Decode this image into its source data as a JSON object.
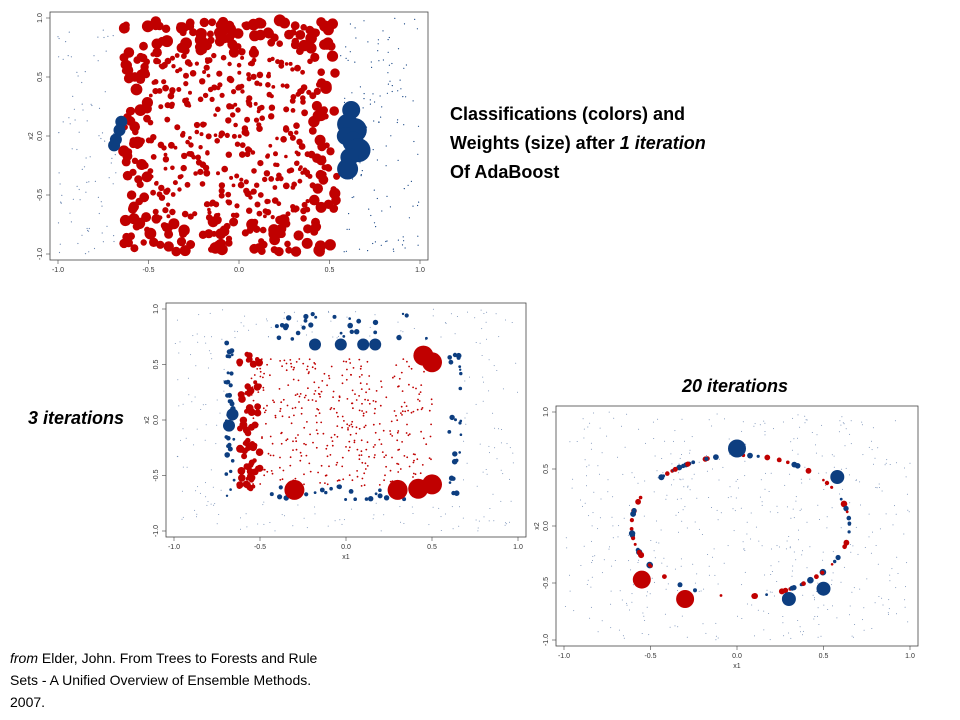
{
  "caption": {
    "line1": "Classifications (colors) and",
    "line2_prefix": "Weights (size) after ",
    "line2_italic": "1 iteration",
    "line3": "Of AdaBoost"
  },
  "labels": {
    "iter3": "3 iterations",
    "iter20": "20 iterations"
  },
  "citation": {
    "italic": "from",
    "text": " Elder, John.  From Trees to Forests and Rule Sets - A Unified Overview of Ensemble Methods.  2007."
  },
  "colors": {
    "red": "#c00000",
    "blue": "#0d3e80",
    "small_dot": "#6b86b0"
  },
  "chart_data": [
    {
      "type": "scatter",
      "title": "",
      "xlabel": "",
      "ylabel": "x2",
      "xlim": [
        -1.0,
        1.0
      ],
      "ylim": [
        -1.0,
        1.0
      ],
      "xticks": [
        "-1.0",
        "-0.5",
        "0.0",
        "0.5",
        "1.0"
      ],
      "yticks": [
        "-1.0",
        "-0.5",
        "0.0",
        "0.5",
        "1.0"
      ],
      "iterations": 1,
      "regions": {
        "red_box": {
          "x": [
            -0.65,
            0.55
          ],
          "y": [
            -1.0,
            1.0
          ]
        },
        "blue_large_points": [
          [
            0.62,
            0.22
          ],
          [
            0.6,
            0.1
          ],
          [
            0.64,
            0.05
          ],
          [
            0.59,
            0.0
          ],
          [
            0.63,
            -0.05
          ],
          [
            0.66,
            -0.12
          ],
          [
            0.61,
            -0.18
          ],
          [
            0.6,
            -0.28
          ],
          [
            -0.65,
            0.12
          ],
          [
            -0.66,
            0.05
          ],
          [
            -0.68,
            -0.03
          ],
          [
            -0.69,
            -0.08
          ]
        ]
      }
    },
    {
      "type": "scatter",
      "title": "",
      "xlabel": "x1",
      "ylabel": "x2",
      "xlim": [
        -1.0,
        1.0
      ],
      "ylim": [
        -1.0,
        1.0
      ],
      "xticks": [
        "-1.0",
        "-0.5",
        "0.0",
        "0.5",
        "1.0"
      ],
      "yticks": [
        "-1.0",
        "-0.5",
        "0.0",
        "0.5",
        "1.0"
      ],
      "iterations": 3,
      "large_points": [
        {
          "x": 0.45,
          "y": 0.58,
          "c": "red"
        },
        {
          "x": 0.5,
          "y": 0.52,
          "c": "red"
        },
        {
          "x": -0.3,
          "y": -0.63,
          "c": "red"
        },
        {
          "x": 0.3,
          "y": -0.63,
          "c": "red"
        },
        {
          "x": 0.42,
          "y": -0.62,
          "c": "red"
        },
        {
          "x": 0.5,
          "y": -0.58,
          "c": "red"
        },
        {
          "x": -0.18,
          "y": 0.68,
          "c": "blue"
        },
        {
          "x": -0.03,
          "y": 0.68,
          "c": "blue"
        },
        {
          "x": 0.1,
          "y": 0.68,
          "c": "blue"
        },
        {
          "x": 0.17,
          "y": 0.68,
          "c": "blue"
        },
        {
          "x": -0.66,
          "y": 0.05,
          "c": "blue"
        },
        {
          "x": -0.68,
          "y": -0.05,
          "c": "blue"
        }
      ]
    },
    {
      "type": "scatter",
      "title": "",
      "xlabel": "x1",
      "ylabel": "x2",
      "xlim": [
        -1.0,
        1.0
      ],
      "ylim": [
        -1.0,
        1.0
      ],
      "xticks": [
        "-1.0",
        "-0.5",
        "0.0",
        "0.5",
        "1.0"
      ],
      "yticks": [
        "-1.0",
        "-0.5",
        "0.0",
        "0.5",
        "1.0"
      ],
      "iterations": 20,
      "large_points": [
        {
          "x": 0.0,
          "y": 0.68,
          "c": "blue"
        },
        {
          "x": 0.58,
          "y": 0.43,
          "c": "blue"
        },
        {
          "x": 0.5,
          "y": -0.55,
          "c": "blue"
        },
        {
          "x": 0.3,
          "y": -0.64,
          "c": "blue"
        },
        {
          "x": -0.55,
          "y": -0.47,
          "c": "red"
        },
        {
          "x": -0.3,
          "y": -0.64,
          "c": "red"
        }
      ]
    }
  ]
}
